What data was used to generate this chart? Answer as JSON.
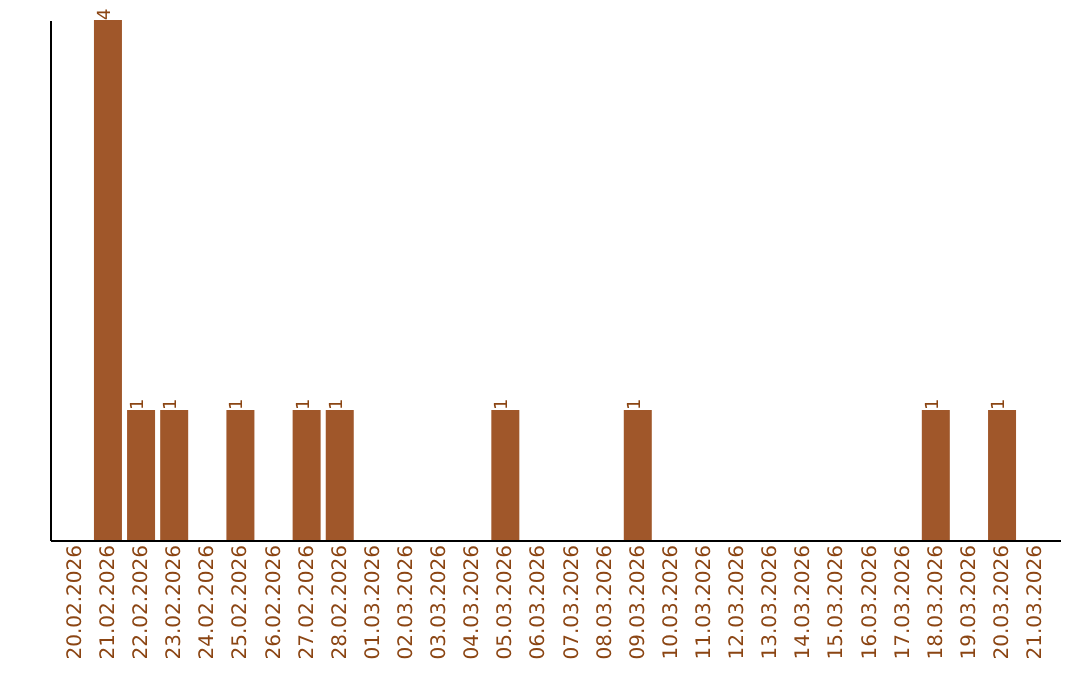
{
  "chart_data": {
    "type": "bar",
    "categories": [
      "20.02.2026",
      "21.02.2026",
      "22.02.2026",
      "23.02.2026",
      "24.02.2026",
      "25.02.2026",
      "26.02.2026",
      "27.02.2026",
      "28.02.2026",
      "01.03.2026",
      "02.03.2026",
      "03.03.2026",
      "04.03.2026",
      "05.03.2026",
      "06.03.2026",
      "07.03.2026",
      "08.03.2026",
      "09.03.2026",
      "10.03.2026",
      "11.03.2026",
      "12.03.2026",
      "13.03.2026",
      "14.03.2026",
      "15.03.2026",
      "16.03.2026",
      "17.03.2026",
      "18.03.2026",
      "19.03.2026",
      "20.03.2026",
      "21.03.2026"
    ],
    "values": [
      0,
      4,
      1,
      1,
      0,
      1,
      0,
      1,
      1,
      0,
      0,
      0,
      0,
      1,
      0,
      0,
      0,
      1,
      0,
      0,
      0,
      0,
      0,
      0,
      0,
      0,
      1,
      0,
      1,
      0
    ],
    "value_labels": [
      null,
      "4",
      "1",
      "1",
      null,
      "1",
      null,
      "1",
      "1",
      null,
      null,
      null,
      null,
      "1",
      null,
      null,
      null,
      "1",
      null,
      null,
      null,
      null,
      null,
      null,
      null,
      null,
      "1",
      null,
      "1",
      null
    ],
    "color": "#a0572a",
    "tick_labels": "x",
    "grid": false
  }
}
